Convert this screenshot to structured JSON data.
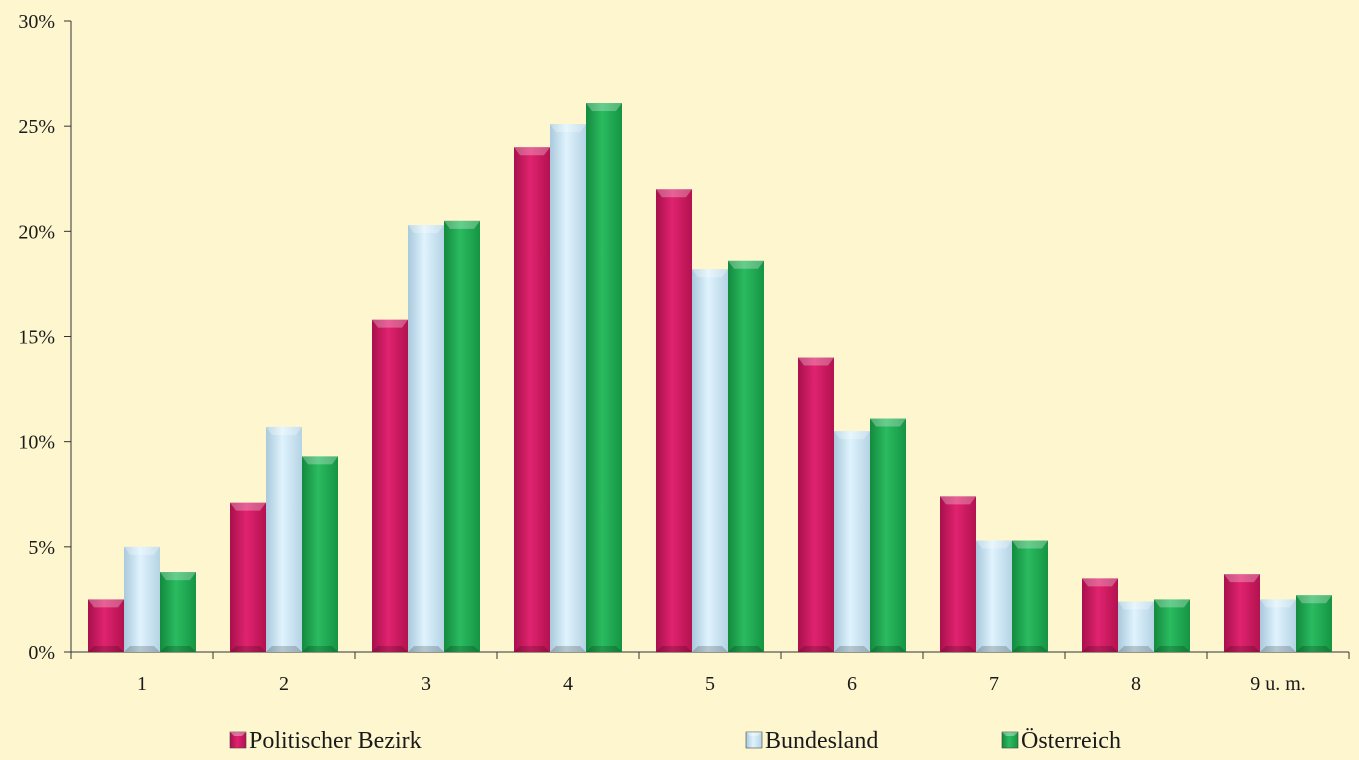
{
  "chart_data": {
    "type": "bar",
    "categories": [
      "1",
      "2",
      "3",
      "4",
      "5",
      "6",
      "7",
      "8",
      "9 u. m."
    ],
    "ylim": [
      0,
      30
    ],
    "yticks": [
      0,
      5,
      10,
      15,
      20,
      25,
      30
    ],
    "ytick_labels": [
      "0%",
      "5%",
      "10%",
      "15%",
      "20%",
      "25%",
      "30%"
    ],
    "grid": false,
    "legend_position": "bottom",
    "series": [
      {
        "name": "Politischer Bezirk",
        "color": "#d81b67",
        "values": [
          2.5,
          7.1,
          15.8,
          24.0,
          22.0,
          14.0,
          7.4,
          3.5,
          3.7
        ]
      },
      {
        "name": "Bundesland",
        "color": "#cfeaf8",
        "values": [
          5.0,
          10.7,
          20.3,
          25.1,
          18.2,
          10.5,
          5.3,
          2.4,
          2.5
        ]
      },
      {
        "name": "Österreich",
        "color": "#22a955",
        "values": [
          3.8,
          9.3,
          20.5,
          26.1,
          18.6,
          11.1,
          5.3,
          2.5,
          2.7
        ]
      }
    ]
  }
}
